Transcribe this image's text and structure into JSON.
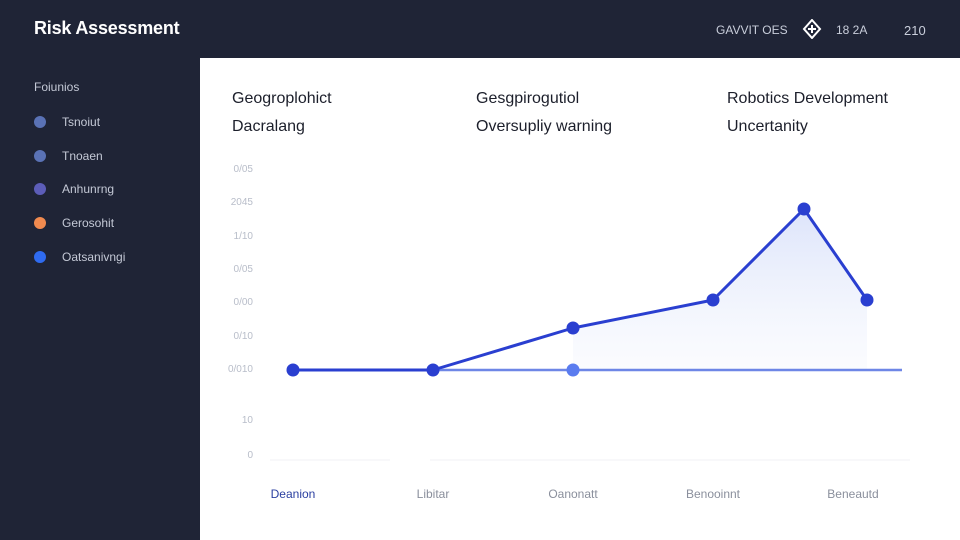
{
  "header": {
    "title": "Risk Assessment",
    "status": "GAVVIT OES",
    "count": "18 2A",
    "number": "210"
  },
  "sidebar": {
    "heading": "Foiunios",
    "items": [
      {
        "label": "Tsnoiut",
        "color": "#5a72b5"
      },
      {
        "label": "Tnoaen",
        "color": "#5a72b5"
      },
      {
        "label": "Anhunrng",
        "color": "#5c5db8"
      },
      {
        "label": "Gerosohit",
        "color": "#f08a4f"
      },
      {
        "label": "Oatsanivngi",
        "color": "#2f6bf0"
      }
    ]
  },
  "cards": [
    {
      "line1": "Geogroplohict",
      "line2": "Dacralang"
    },
    {
      "line1": "Gesgpirogutiol",
      "line2": "Oversupliy warning"
    },
    {
      "line1": "Robotics Development",
      "line2": "Uncertanity"
    }
  ],
  "chart_data": {
    "type": "line",
    "y_ticks": [
      "0/05",
      "2045",
      "1/10",
      "0/05",
      "0/00",
      "0/10",
      "0/010",
      "10",
      "0"
    ],
    "categories": [
      "Deanion",
      "Libitar",
      "Oanonatt",
      "Benooinnt",
      "Beneautd"
    ],
    "series": [
      {
        "values": [
          [
            0,
            0
          ],
          [
            1,
            0
          ],
          [
            2,
            1.2
          ],
          [
            3,
            2.0
          ],
          [
            3.65,
            4.6
          ],
          [
            4.1,
            2.0
          ]
        ],
        "color": "#2a3fd0"
      },
      {
        "values": [
          [
            0,
            0
          ],
          [
            1,
            0
          ],
          [
            2,
            0
          ],
          [
            4,
            0
          ]
        ],
        "color": "#4a68e0"
      }
    ],
    "accent": "#2a3fd0",
    "highlighted_category": "Deanion"
  }
}
